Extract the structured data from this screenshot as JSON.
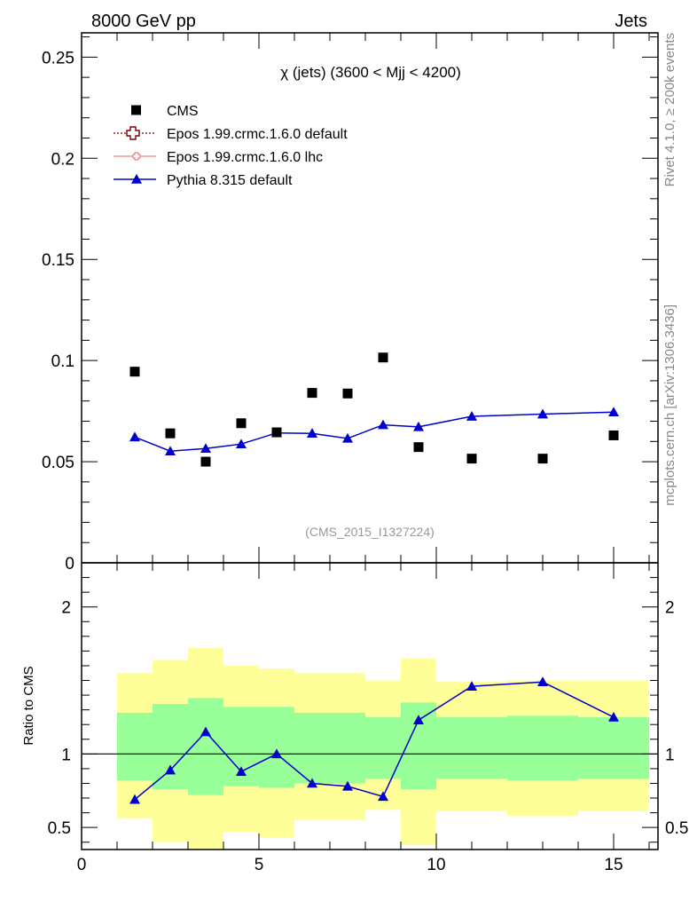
{
  "header": {
    "left_label": "8000 GeV pp",
    "right_label": "Jets"
  },
  "side_labels": {
    "rivet": "Rivet 4.1.0, ≥ 200k events",
    "mcplots": "mcplots.cern.ch [arXiv:1306.3436]"
  },
  "chart_data": {
    "type": "scatter",
    "title": "χ (jets) (3600 < Mjj < 4200)",
    "watermark": "(CMS_2015_I1327224)",
    "xlim": [
      0,
      16.25
    ],
    "main": {
      "ylim": [
        0,
        0.262
      ],
      "yticks": [
        0,
        0.05,
        0.1,
        0.15,
        0.2,
        0.25
      ],
      "ytick_labels": [
        "0",
        "0.05",
        "0.1",
        "0.15",
        "0.2",
        "0.25"
      ]
    },
    "ratio": {
      "ylabel": "Ratio to CMS",
      "ylim": [
        0.35,
        2.3
      ],
      "yticks": [
        0.5,
        1,
        2
      ],
      "ytick_labels": [
        "0.5",
        "1",
        "2"
      ],
      "bands": [
        {
          "x0": 1,
          "x1": 2,
          "y_lo": 0.56,
          "y_hi": 1.55,
          "g_lo": 0.82,
          "g_hi": 1.28
        },
        {
          "x0": 2,
          "x1": 3,
          "y_lo": 0.4,
          "y_hi": 1.64,
          "g_lo": 0.76,
          "g_hi": 1.34
        },
        {
          "x0": 3,
          "x1": 4,
          "y_lo": 0.34,
          "y_hi": 1.72,
          "g_lo": 0.72,
          "g_hi": 1.38
        },
        {
          "x0": 4,
          "x1": 5,
          "y_lo": 0.47,
          "y_hi": 1.6,
          "g_lo": 0.78,
          "g_hi": 1.32
        },
        {
          "x0": 5,
          "x1": 6,
          "y_lo": 0.43,
          "y_hi": 1.58,
          "g_lo": 0.77,
          "g_hi": 1.32
        },
        {
          "x0": 6,
          "x1": 8,
          "y_lo": 0.55,
          "y_hi": 1.55,
          "g_lo": 0.8,
          "g_hi": 1.28
        },
        {
          "x0": 8,
          "x1": 9,
          "y_lo": 0.62,
          "y_hi": 1.5,
          "g_lo": 0.83,
          "g_hi": 1.25
        },
        {
          "x0": 9,
          "x1": 10,
          "y_lo": 0.38,
          "y_hi": 1.65,
          "g_lo": 0.76,
          "g_hi": 1.35
        },
        {
          "x0": 10,
          "x1": 12,
          "y_lo": 0.61,
          "y_hi": 1.49,
          "g_lo": 0.83,
          "g_hi": 1.25
        },
        {
          "x0": 12,
          "x1": 14,
          "y_lo": 0.58,
          "y_hi": 1.5,
          "g_lo": 0.82,
          "g_hi": 1.26
        },
        {
          "x0": 14,
          "x1": 16,
          "y_lo": 0.61,
          "y_hi": 1.5,
          "g_lo": 0.83,
          "g_hi": 1.25
        }
      ],
      "pythia_ratio": [
        0.69,
        0.89,
        1.15,
        0.88,
        1.0,
        0.8,
        0.78,
        0.71,
        1.23,
        1.46,
        1.49,
        1.25
      ],
      "pythia_ratio_err": [
        0.015,
        0.02,
        0.025,
        0.02,
        0.02,
        0.015,
        0.015,
        0.015,
        0.02,
        0.01,
        0.01,
        0.01
      ]
    },
    "xticks": [
      0,
      5,
      10,
      15
    ],
    "xtick_labels": [
      "0",
      "5",
      "10",
      "15"
    ],
    "x": [
      1.5,
      2.5,
      3.5,
      4.5,
      5.5,
      6.5,
      7.5,
      8.5,
      9.5,
      11,
      13,
      15
    ],
    "series": [
      {
        "name": "CMS",
        "marker": "square",
        "color": "#000000",
        "values": [
          0.0945,
          0.064,
          0.05,
          0.069,
          0.0645,
          0.084,
          0.0837,
          0.1015,
          0.0572,
          0.0515,
          0.0515,
          0.063
        ]
      },
      {
        "name": "Epos 1.99.crmc.1.6.0 default",
        "marker": "open-cross",
        "color": "#7f0000",
        "values": []
      },
      {
        "name": "Epos 1.99.crmc.1.6.0 lhc",
        "marker": "small-cross",
        "color": "#f08080",
        "values": []
      },
      {
        "name": "Pythia 8.315 default",
        "marker": "triangle",
        "color": "#0000cc",
        "values": [
          0.0622,
          0.0552,
          0.0565,
          0.0587,
          0.0642,
          0.064,
          0.0615,
          0.0682,
          0.0672,
          0.0724,
          0.0735,
          0.0745
        ],
        "errors": [
          0.0015,
          0.0012,
          0.0013,
          0.0014,
          0.0015,
          0.0015,
          0.0015,
          0.0017,
          0.0016,
          0.001,
          0.0008,
          0.0008
        ]
      }
    ],
    "colors": {
      "band_yellow": "#ffff99",
      "band_green": "#99ff99"
    }
  }
}
